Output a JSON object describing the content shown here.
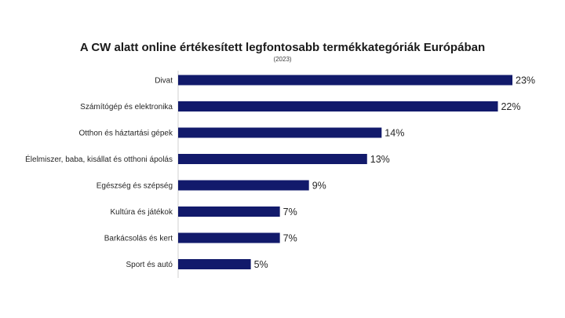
{
  "chart_data": {
    "type": "bar",
    "orientation": "horizontal",
    "title": "A CW alatt online értékesített legfontosabb termékkategóriák Európában",
    "subtitle": "(2023)",
    "categories": [
      "Divat",
      "Számítógép és elektronika",
      "Otthon és háztartási gépek",
      "Élelmiszer, baba, kisállat és otthoni ápolás",
      "Egészség és szépség",
      "Kultúra és játékok",
      "Barkácsolás és kert",
      "Sport és autó"
    ],
    "values": [
      23,
      22,
      14,
      13,
      9,
      7,
      7,
      5
    ],
    "value_labels": [
      "23%",
      "22%",
      "14%",
      "13%",
      "9%",
      "7%",
      "7%",
      "5%"
    ],
    "unit": "%",
    "xlim": [
      0,
      23
    ],
    "bar_color": "#121a6b",
    "grid": false,
    "legend": "none"
  }
}
